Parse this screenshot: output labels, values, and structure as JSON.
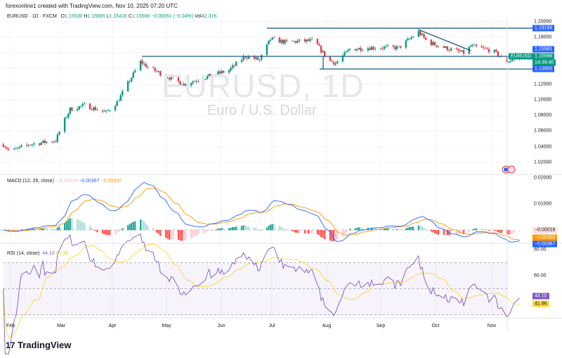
{
  "credit": "forexonline1 created with TradingView.com, Nov 10, 2025 07:20 UTC",
  "header": {
    "symbol": "EURUSD · 1D · FXCM",
    "open_label": "O",
    "open": "1.15530",
    "high_label": "H",
    "high": "1.15665",
    "low_label": "L",
    "low": "1.15416",
    "close_label": "C",
    "close": "1.15566",
    "change": "−0.00051 (−0.04%)",
    "vol_label": "Vol",
    "vol": "42.31K"
  },
  "watermark": {
    "title": "EURUSD, 1D",
    "subtitle": "Euro / U.S. Dollar"
  },
  "colors": {
    "up": "#089981",
    "down": "#f23645",
    "macd": "#2962ff",
    "signal": "#ff9800",
    "rsi": "#7e57c2",
    "rsi_ma": "#fdd835",
    "level_line": "#1e5f8a",
    "axis_tag": "#2962ff"
  },
  "price_axis": [
    "1.20000",
    "1.18000",
    "1.12000",
    "1.10000",
    "1.08000",
    "1.06000",
    "1.04000",
    "1.02000"
  ],
  "price_tags": {
    "resistance": "1.19184",
    "pivot": "1.15581",
    "symbol": "EURUSD",
    "last": "1.15566",
    "countdown": "14:39:40",
    "support": "1.13955"
  },
  "macd": {
    "label": "MACD (12, 26, close)",
    "hist": "−0.00016",
    "macd": "−0.00367",
    "signal": "−0.00350",
    "axis": [
      "0.02000",
      "0.01000"
    ],
    "tags": {
      "hist": "−0.00016",
      "signal": "−0.00350",
      "macd": "−0.00367"
    }
  },
  "rsi": {
    "label": "RSI (14, close)",
    "value": "44.10",
    "ma": "41.96",
    "axis": [
      "80.00",
      "60.00"
    ]
  },
  "time_axis": [
    "Feb",
    "Mar",
    "Apr",
    "May",
    "Jun",
    "Jul",
    "Aug",
    "Sep",
    "Oct",
    "Nov"
  ],
  "logo": "TradingView",
  "chart_data": {
    "type": "candlestick",
    "symbol": "EURUSD",
    "interval": "1D",
    "ylim": [
      1.01,
      1.205
    ],
    "approx_close_path": [
      [
        "2025-01-28",
        1.043
      ],
      [
        "2025-02-01",
        1.034
      ],
      [
        "2025-02-11",
        1.043
      ],
      [
        "2025-02-26",
        1.048
      ],
      [
        "2025-03-02",
        1.07
      ],
      [
        "2025-03-06",
        1.088
      ],
      [
        "2025-03-14",
        1.093
      ],
      [
        "2025-03-26",
        1.084
      ],
      [
        "2025-04-01",
        1.097
      ],
      [
        "2025-04-09",
        1.129
      ],
      [
        "2025-04-14",
        1.149
      ],
      [
        "2025-04-18",
        1.142
      ],
      [
        "2025-04-26",
        1.133
      ],
      [
        "2025-05-08",
        1.12
      ],
      [
        "2025-05-20",
        1.129
      ],
      [
        "2025-06-02",
        1.138
      ],
      [
        "2025-06-11",
        1.156
      ],
      [
        "2025-06-19",
        1.151
      ],
      [
        "2025-06-25",
        1.178
      ],
      [
        "2025-07-03",
        1.174
      ],
      [
        "2025-07-19",
        1.176
      ],
      [
        "2025-07-27",
        1.151
      ],
      [
        "2025-07-31",
        1.147
      ],
      [
        "2025-08-08",
        1.165
      ],
      [
        "2025-08-20",
        1.167
      ],
      [
        "2025-09-04",
        1.167
      ],
      [
        "2025-09-15",
        1.187
      ],
      [
        "2025-09-20",
        1.174
      ],
      [
        "2025-10-02",
        1.165
      ],
      [
        "2025-10-10",
        1.16
      ],
      [
        "2025-10-14",
        1.169
      ],
      [
        "2025-10-26",
        1.163
      ],
      [
        "2025-11-03",
        1.149
      ],
      [
        "2025-11-10",
        1.1557
      ]
    ],
    "horizontal_levels": [
      1.19184,
      1.15581,
      1.13955
    ],
    "trendline": [
      [
        "2025-09-15",
        1.19
      ],
      [
        "2025-10-14",
        1.163
      ]
    ]
  }
}
